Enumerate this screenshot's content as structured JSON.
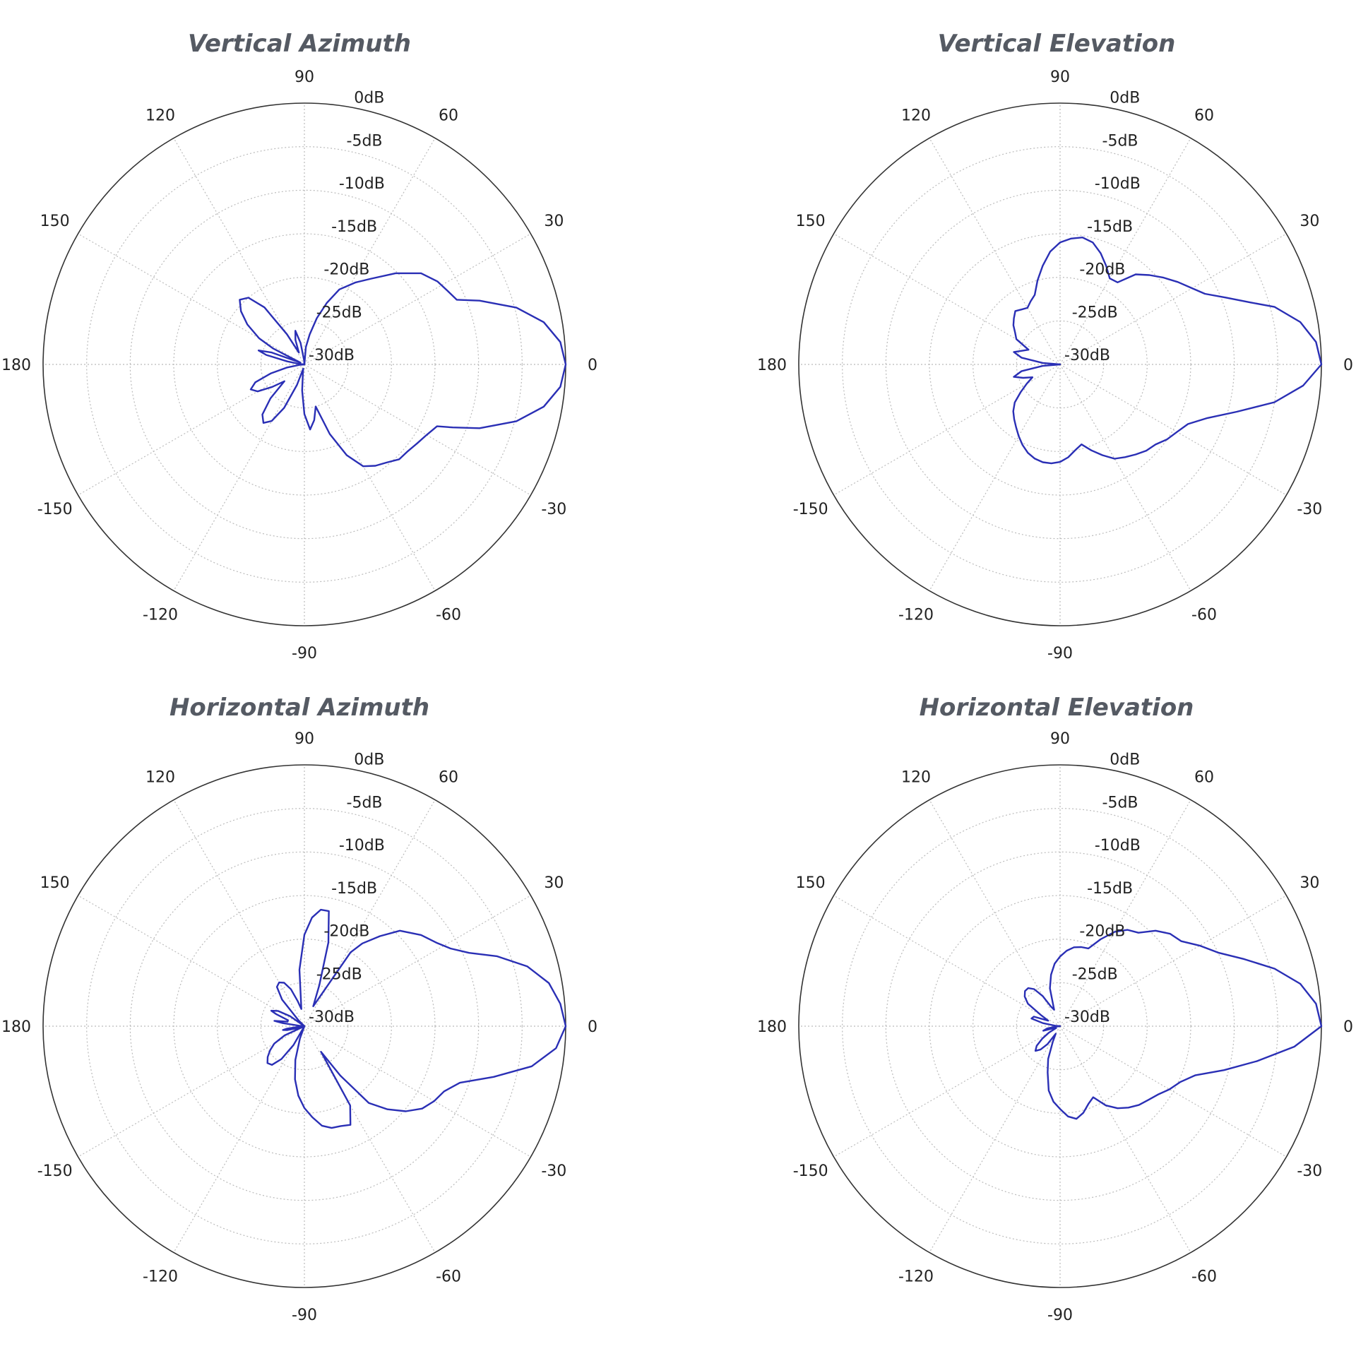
{
  "chart_data": [
    {
      "type": "polar-line",
      "title": "Vertical Azimuth",
      "angle_ticks": [
        "0",
        "30",
        "60",
        "90",
        "120",
        "150",
        "180",
        "-150",
        "-120",
        "-90",
        "-60",
        "-30"
      ],
      "radial_ticks": [
        "0dB",
        "-5dB",
        "-10dB",
        "-15dB",
        "-20dB",
        "-25dB",
        "-30dB"
      ],
      "rlim": [
        -30,
        0
      ],
      "grid": true,
      "series_color": "#2a2fb5",
      "series": [
        {
          "angle_deg": [
            0,
            5,
            10,
            15,
            20,
            23,
            27,
            32,
            38,
            45,
            52,
            58,
            65,
            70,
            75,
            80,
            85,
            90,
            95,
            100,
            105,
            110,
            115,
            120,
            125,
            130,
            135,
            140,
            145,
            150,
            153,
            156,
            160,
            163,
            166,
            170,
            175,
            180,
            185,
            190,
            195,
            200,
            205,
            210,
            215,
            220,
            225,
            230,
            235,
            240,
            245,
            250,
            255,
            260,
            265,
            270,
            275,
            280,
            285,
            290,
            295,
            300,
            305,
            310,
            315,
            320,
            325,
            330,
            335,
            337,
            340,
            345,
            350,
            355
          ],
          "r_db": [
            0,
            -0.5,
            -2.1,
            -4.8,
            -8.6,
            -11,
            -11.5,
            -12,
            -13,
            -15.2,
            -17.5,
            -18.9,
            -20.5,
            -22.5,
            -24.5,
            -26.5,
            -28,
            -30,
            -29.5,
            -27.5,
            -26,
            -27,
            -28.5,
            -26,
            -22,
            -20,
            -19.5,
            -20.5,
            -22,
            -24,
            -26,
            -29.5,
            -26,
            -24.5,
            -25.5,
            -28,
            -29.5,
            -30,
            -29.5,
            -28,
            -26,
            -24,
            -23.2,
            -23.8,
            -25.5,
            -27,
            -24.5,
            -22.5,
            -21.8,
            -22.5,
            -24.5,
            -27.5,
            -29.5,
            -29,
            -27,
            -24.3,
            -22.5,
            -23.5,
            -25,
            -21.5,
            -18.5,
            -16.5,
            -15.8,
            -15.3,
            -14.6,
            -14.5,
            -14.2,
            -13.8,
            -13.2,
            -11.5,
            -8.6,
            -4.8,
            -2.1,
            -0.5
          ]
        }
      ]
    },
    {
      "type": "polar-line",
      "title": "Vertical Elevation",
      "angle_ticks": [
        "0",
        "30",
        "60",
        "90",
        "120",
        "150",
        "180",
        "-150",
        "-120",
        "-90",
        "-60",
        "-30"
      ],
      "radial_ticks": [
        "0dB",
        "-5dB",
        "-10dB",
        "-15dB",
        "-20dB",
        "-25dB",
        "-30dB"
      ],
      "rlim": [
        -30,
        0
      ],
      "grid": true,
      "series_color": "#2a2fb5",
      "series": [
        {
          "angle_deg": [
            0,
            5,
            10,
            15,
            18,
            22,
            26,
            30,
            35,
            40,
            45,
            50,
            55,
            60,
            65,
            70,
            75,
            80,
            85,
            90,
            95,
            100,
            105,
            110,
            115,
            120,
            125,
            130,
            135,
            140,
            145,
            150,
            155,
            160,
            165,
            170,
            175,
            180,
            185,
            190,
            195,
            200,
            205,
            210,
            215,
            220,
            225,
            230,
            235,
            240,
            245,
            250,
            255,
            260,
            265,
            270,
            275,
            280,
            285,
            290,
            295,
            300,
            305,
            310,
            315,
            320,
            325,
            330,
            335,
            340,
            345,
            350,
            355
          ],
          "r_db": [
            0,
            -0.5,
            -2,
            -4.5,
            -7,
            -9.5,
            -11.5,
            -12.5,
            -13.5,
            -14.5,
            -15.5,
            -16.5,
            -18.5,
            -18.6,
            -17.5,
            -16.4,
            -15.5,
            -15.2,
            -15.5,
            -16,
            -17,
            -18.5,
            -20,
            -21.5,
            -22,
            -22.5,
            -22.3,
            -22,
            -22.5,
            -23,
            -23.7,
            -24.2,
            -26,
            -25.4,
            -24.5,
            -25.5,
            -28,
            -30,
            -28,
            -25.5,
            -24.5,
            -25.5,
            -26.5,
            -25.6,
            -24.5,
            -23.2,
            -22.4,
            -21.8,
            -21.2,
            -20.5,
            -19.8,
            -19.2,
            -18.8,
            -18.6,
            -18.6,
            -18.8,
            -19.3,
            -20,
            -20.5,
            -19.5,
            -18.5,
            -17.5,
            -17,
            -16.5,
            -16,
            -15.7,
            -15,
            -14.5,
            -13.8,
            -12,
            -9,
            -5,
            -2
          ]
        }
      ]
    },
    {
      "type": "polar-line",
      "title": "Horizontal Azimuth",
      "angle_ticks": [
        "0",
        "30",
        "60",
        "90",
        "120",
        "150",
        "180",
        "-150",
        "-120",
        "-90",
        "-60",
        "-30"
      ],
      "radial_ticks": [
        "0dB",
        "-5dB",
        "-10dB",
        "-15dB",
        "-20dB",
        "-25dB",
        "-30dB"
      ],
      "rlim": [
        -30,
        0
      ],
      "grid": true,
      "series_color": "#2a2fb5",
      "series": [
        {
          "angle_deg": [
            0,
            5,
            10,
            15,
            20,
            24,
            28,
            32,
            38,
            45,
            50,
            55,
            58,
            62,
            66,
            70,
            74,
            78,
            82,
            86,
            90,
            95,
            100,
            105,
            110,
            115,
            120,
            125,
            130,
            135,
            140,
            145,
            150,
            155,
            157,
            160,
            165,
            170,
            172,
            175,
            180,
            185,
            188,
            190,
            193,
            195,
            200,
            205,
            210,
            215,
            220,
            225,
            230,
            235,
            240,
            245,
            250,
            255,
            260,
            265,
            270,
            275,
            280,
            285,
            290,
            295,
            300,
            303,
            306,
            310,
            315,
            320,
            325,
            330,
            335,
            340,
            345,
            350,
            355
          ],
          "r_db": [
            0,
            -0.5,
            -1.5,
            -3.5,
            -6.5,
            -9.3,
            -11,
            -12,
            -13,
            -14.5,
            -16.5,
            -18.4,
            -20,
            -26,
            -27.5,
            -25,
            -20,
            -16.5,
            -16.5,
            -17.5,
            -19.5,
            -23.5,
            -28,
            -27,
            -25.5,
            -24.5,
            -24.2,
            -24.5,
            -26,
            -29,
            -30,
            -28,
            -26.5,
            -25.8,
            -26.5,
            -28,
            -28,
            -26.5,
            -27.5,
            -29.5,
            -30,
            -29.5,
            -28,
            -27.5,
            -28,
            -29,
            -30,
            -27.5,
            -26,
            -25.2,
            -24.5,
            -24,
            -24.2,
            -25.4,
            -27.5,
            -30,
            -28.5,
            -26,
            -23.8,
            -22,
            -20.6,
            -19.5,
            -18.4,
            -17.9,
            -17.8,
            -17.5,
            -19.5,
            -26.5,
            -23,
            -18.5,
            -16.5,
            -14.8,
            -13.5,
            -12.8,
            -12.3,
            -11,
            -7.5,
            -3.5,
            -1
          ]
        }
      ]
    },
    {
      "type": "polar-line",
      "title": "Horizontal Elevation",
      "angle_ticks": [
        "0",
        "30",
        "60",
        "90",
        "120",
        "150",
        "180",
        "-150",
        "-120",
        "-90",
        "-60",
        "-30"
      ],
      "radial_ticks": [
        "0dB",
        "-5dB",
        "-10dB",
        "-15dB",
        "-20dB",
        "-25dB",
        "-30dB"
      ],
      "rlim": [
        -30,
        0
      ],
      "grid": true,
      "series_color": "#2a2fb5",
      "series": [
        {
          "angle_deg": [
            0,
            5,
            10,
            15,
            20,
            25,
            30,
            35,
            40,
            45,
            50,
            55,
            60,
            65,
            70,
            75,
            80,
            85,
            90,
            95,
            100,
            105,
            110,
            115,
            120,
            125,
            130,
            135,
            140,
            145,
            150,
            155,
            160,
            165,
            170,
            175,
            180,
            185,
            190,
            195,
            200,
            205,
            210,
            215,
            220,
            225,
            230,
            235,
            240,
            245,
            250,
            255,
            260,
            265,
            270,
            275,
            280,
            285,
            290,
            295,
            300,
            305,
            310,
            315,
            320,
            325,
            330,
            335,
            340,
            345,
            350,
            355
          ],
          "r_db": [
            0,
            -0.5,
            -2,
            -4.5,
            -7.5,
            -10,
            -11.5,
            -13,
            -13.5,
            -14.5,
            -16,
            -16.5,
            -17.5,
            -19,
            -20.5,
            -20.6,
            -20.8,
            -21.3,
            -22,
            -22.8,
            -24,
            -25.5,
            -28,
            -27.5,
            -26,
            -24.8,
            -24.3,
            -24.3,
            -24.7,
            -25.5,
            -27.5,
            -28.5,
            -26.8,
            -26.6,
            -28,
            -29.5,
            -30,
            -29.5,
            -28.5,
            -28,
            -29.5,
            -29.5,
            -28.5,
            -27.5,
            -26.5,
            -26,
            -26.5,
            -27.5,
            -29,
            -28,
            -26,
            -24.5,
            -22.5,
            -21.3,
            -20.5,
            -19.6,
            -19.2,
            -19.7,
            -20.5,
            -21,
            -19.5,
            -18.5,
            -17.8,
            -17.2,
            -16.8,
            -16.3,
            -15.5,
            -14.8,
            -13.5,
            -10.5,
            -7,
            -3
          ]
        }
      ]
    }
  ]
}
